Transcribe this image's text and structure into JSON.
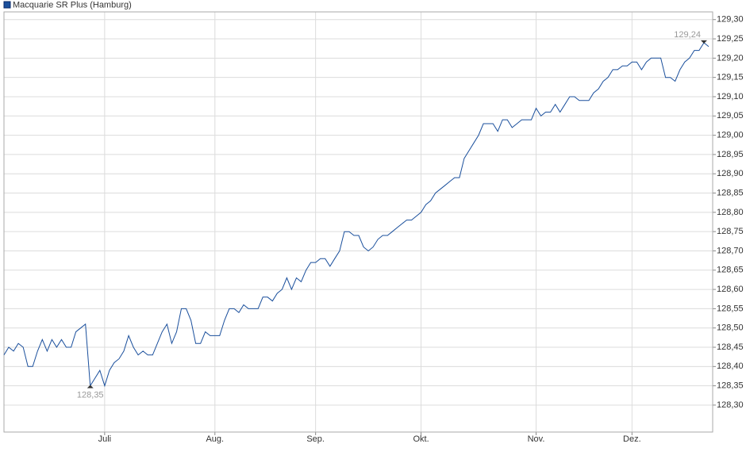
{
  "chart_data": {
    "type": "line",
    "categories": [
      null,
      null,
      null,
      null,
      null,
      null,
      null,
      null,
      null,
      null,
      null,
      null,
      null,
      null,
      null,
      null,
      null,
      null,
      null,
      null,
      null,
      "Juli",
      null,
      null,
      null,
      null,
      null,
      null,
      null,
      null,
      null,
      null,
      null,
      null,
      null,
      null,
      null,
      null,
      null,
      null,
      null,
      null,
      null,
      null,
      "Aug.",
      null,
      null,
      null,
      null,
      null,
      null,
      null,
      null,
      null,
      null,
      null,
      null,
      null,
      null,
      null,
      null,
      null,
      null,
      null,
      null,
      "Sep.",
      null,
      null,
      null,
      null,
      null,
      null,
      null,
      null,
      null,
      null,
      null,
      null,
      null,
      null,
      null,
      null,
      null,
      null,
      null,
      null,
      null,
      "Okt.",
      null,
      null,
      null,
      null,
      null,
      null,
      null,
      null,
      null,
      null,
      null,
      null,
      null,
      null,
      null,
      null,
      null,
      null,
      null,
      null,
      null,
      null,
      null,
      "Nov.",
      null,
      null,
      null,
      null,
      null,
      null,
      null,
      null,
      null,
      null,
      null,
      null,
      null,
      null,
      null,
      null,
      null,
      null,
      null,
      "Dez.",
      null,
      null,
      null,
      null,
      null,
      null,
      null,
      null,
      null,
      null,
      null,
      null,
      null,
      null,
      null,
      null
    ],
    "series": [
      {
        "name": "Macquarie SR Plus (Hamburg)",
        "color": "#1a4f9c",
        "values": [
          128.43,
          128.45,
          128.44,
          128.46,
          128.45,
          128.4,
          128.4,
          128.44,
          128.47,
          128.44,
          128.47,
          128.45,
          128.47,
          128.45,
          128.45,
          128.49,
          128.5,
          128.51,
          128.35,
          128.37,
          128.39,
          128.35,
          128.39,
          128.41,
          128.42,
          128.44,
          128.48,
          128.45,
          128.43,
          128.44,
          128.43,
          128.43,
          128.46,
          128.49,
          128.51,
          128.46,
          128.49,
          128.55,
          128.55,
          128.52,
          128.46,
          128.46,
          128.49,
          128.48,
          128.48,
          128.48,
          128.52,
          128.55,
          128.55,
          128.54,
          128.56,
          128.55,
          128.55,
          128.55,
          128.58,
          128.58,
          128.57,
          128.59,
          128.6,
          128.63,
          128.6,
          128.63,
          128.62,
          128.65,
          128.67,
          128.67,
          128.68,
          128.68,
          128.66,
          128.68,
          128.7,
          128.75,
          128.75,
          128.74,
          128.74,
          128.71,
          128.7,
          128.71,
          128.73,
          128.74,
          128.74,
          128.75,
          128.76,
          128.77,
          128.78,
          128.78,
          128.79,
          128.8,
          128.82,
          128.83,
          128.85,
          128.86,
          128.87,
          128.88,
          128.89,
          128.89,
          128.94,
          128.96,
          128.98,
          129.0,
          129.03,
          129.03,
          129.03,
          129.01,
          129.04,
          129.04,
          129.02,
          129.03,
          129.04,
          129.04,
          129.04,
          129.07,
          129.05,
          129.06,
          129.06,
          129.08,
          129.06,
          129.08,
          129.1,
          129.1,
          129.09,
          129.09,
          129.09,
          129.11,
          129.12,
          129.14,
          129.15,
          129.17,
          129.17,
          129.18,
          129.18,
          129.19,
          129.19,
          129.17,
          129.19,
          129.2,
          129.2,
          129.2,
          129.15,
          129.15,
          129.14,
          129.17,
          129.19,
          129.2,
          129.22,
          129.22,
          129.24,
          129.23
        ],
        "value_labels": [
          null,
          null,
          null,
          null,
          null,
          null,
          null,
          null,
          null,
          null,
          null,
          null,
          null,
          null,
          null,
          null,
          null,
          null,
          "128,35",
          null,
          null,
          null,
          null,
          null,
          null,
          null,
          null,
          null,
          null,
          null,
          null,
          null,
          null,
          null,
          null,
          null,
          null,
          null,
          null,
          null,
          null,
          null,
          null,
          null,
          null,
          null,
          null,
          null,
          null,
          null,
          null,
          null,
          null,
          null,
          null,
          null,
          null,
          null,
          null,
          null,
          null,
          null,
          null,
          null,
          null,
          null,
          null,
          null,
          null,
          null,
          null,
          null,
          null,
          null,
          null,
          null,
          null,
          null,
          null,
          null,
          null,
          null,
          null,
          null,
          null,
          null,
          null,
          null,
          null,
          null,
          null,
          null,
          null,
          null,
          null,
          null,
          null,
          null,
          null,
          null,
          null,
          null,
          null,
          null,
          null,
          null,
          null,
          null,
          null,
          null,
          null,
          null,
          null,
          null,
          null,
          null,
          null,
          null,
          null,
          null,
          null,
          null,
          null,
          null,
          null,
          null,
          null,
          null,
          null,
          null,
          null,
          null,
          null,
          null,
          null,
          null,
          null,
          null,
          null,
          null,
          null,
          null,
          null,
          null,
          null,
          null,
          "129,24",
          null
        ]
      }
    ],
    "ylim": [
      128.23,
      129.32
    ],
    "yticks": [
      {
        "value": 128.3,
        "label": "128,30"
      },
      {
        "value": 128.35,
        "label": "128,35"
      },
      {
        "value": 128.4,
        "label": "128,40"
      },
      {
        "value": 128.45,
        "label": "128,45"
      },
      {
        "value": 128.5,
        "label": "128,50"
      },
      {
        "value": 128.55,
        "label": "128,55"
      },
      {
        "value": 128.6,
        "label": "128,60"
      },
      {
        "value": 128.65,
        "label": "128,65"
      },
      {
        "value": 128.7,
        "label": "128,70"
      },
      {
        "value": 128.75,
        "label": "128,75"
      },
      {
        "value": 128.8,
        "label": "128,80"
      },
      {
        "value": 128.85,
        "label": "128,85"
      },
      {
        "value": 128.9,
        "label": "128,90"
      },
      {
        "value": 128.95,
        "label": "128,95"
      },
      {
        "value": 129.0,
        "label": "129,00"
      },
      {
        "value": 129.05,
        "label": "129,05"
      },
      {
        "value": 129.1,
        "label": "129,10"
      },
      {
        "value": 129.15,
        "label": "129,15"
      },
      {
        "value": 129.2,
        "label": "129,20"
      },
      {
        "value": 129.25,
        "label": "129,25"
      },
      {
        "value": 129.3,
        "label": "129,30"
      }
    ],
    "grid": true,
    "y_axis_side": "right",
    "legend": "top-left"
  }
}
